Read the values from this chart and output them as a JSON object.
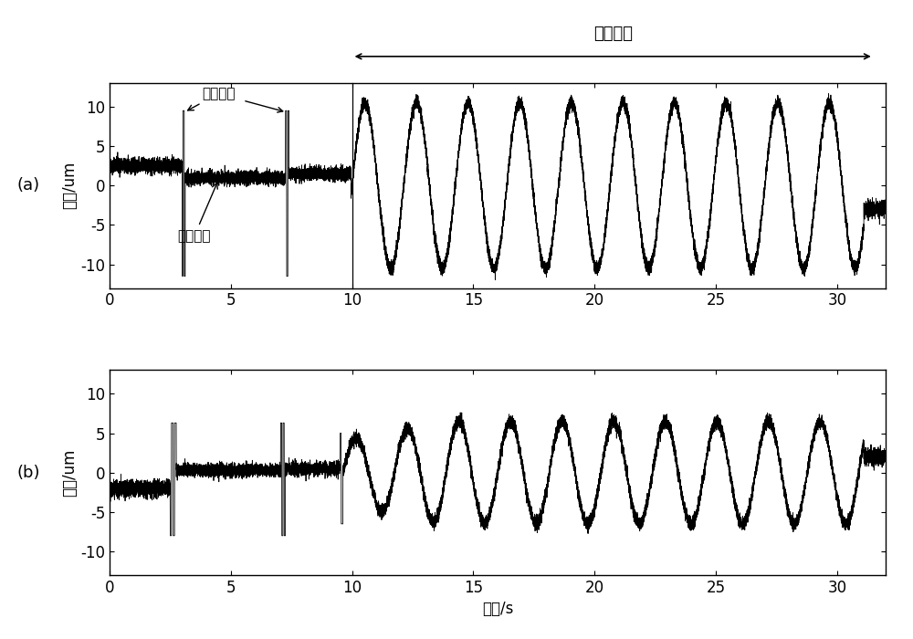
{
  "title_a": "(a)",
  "title_b": "(b)",
  "ylabel": "幅値/um",
  "xlabel": "时间/s",
  "rotation_label": "旋转阶段",
  "quasi_stop_action": "准停动作",
  "quasi_stop_phase": "准停阶段",
  "xlim": [
    0,
    32
  ],
  "ylim_a": [
    -12,
    12
  ],
  "ylim_b": [
    -12,
    12
  ],
  "xticks": [
    0,
    5,
    10,
    15,
    20,
    25,
    30
  ],
  "yticks_a": [
    -10,
    -5,
    0,
    5,
    10
  ],
  "yticks_b": [
    -10,
    -5,
    0,
    5,
    10
  ],
  "rotation_start": 10.0,
  "rotation_end": 31.5,
  "color": "#000000",
  "bg_color": "#ffffff",
  "signal_freq_a": 0.47,
  "signal_amplitude_a": 10.5,
  "signal_freq_b": 0.47,
  "signal_amplitude_b": 6.5
}
